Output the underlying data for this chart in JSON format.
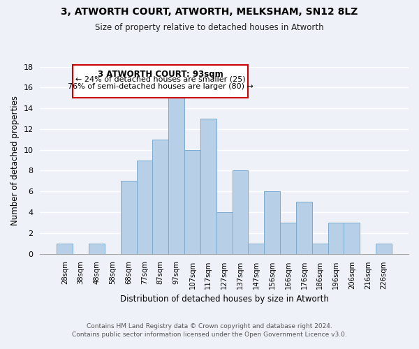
{
  "title": "3, ATWORTH COURT, ATWORTH, MELKSHAM, SN12 8LZ",
  "subtitle": "Size of property relative to detached houses in Atworth",
  "xlabel": "Distribution of detached houses by size in Atworth",
  "ylabel": "Number of detached properties",
  "bar_labels": [
    "28sqm",
    "38sqm",
    "48sqm",
    "58sqm",
    "68sqm",
    "77sqm",
    "87sqm",
    "97sqm",
    "107sqm",
    "117sqm",
    "127sqm",
    "137sqm",
    "147sqm",
    "156sqm",
    "166sqm",
    "176sqm",
    "186sqm",
    "196sqm",
    "206sqm",
    "216sqm",
    "226sqm"
  ],
  "bar_values": [
    1,
    0,
    1,
    0,
    7,
    9,
    11,
    15,
    10,
    13,
    4,
    8,
    1,
    6,
    3,
    5,
    1,
    3,
    3,
    0,
    1
  ],
  "bar_color": "#b8cfe8",
  "bar_edge_color": "#7aaad0",
  "ylim": [
    0,
    18
  ],
  "yticks": [
    0,
    2,
    4,
    6,
    8,
    10,
    12,
    14,
    16,
    18
  ],
  "annotation_title": "3 ATWORTH COURT: 93sqm",
  "annotation_line1": "← 24% of detached houses are smaller (25)",
  "annotation_line2": "76% of semi-detached houses are larger (80) →",
  "annotation_box_color": "#ffffff",
  "annotation_box_edge": "#cc0000",
  "footer_line1": "Contains HM Land Registry data © Crown copyright and database right 2024.",
  "footer_line2": "Contains public sector information licensed under the Open Government Licence v3.0.",
  "background_color": "#eef2f8",
  "grid_color": "#ffffff"
}
